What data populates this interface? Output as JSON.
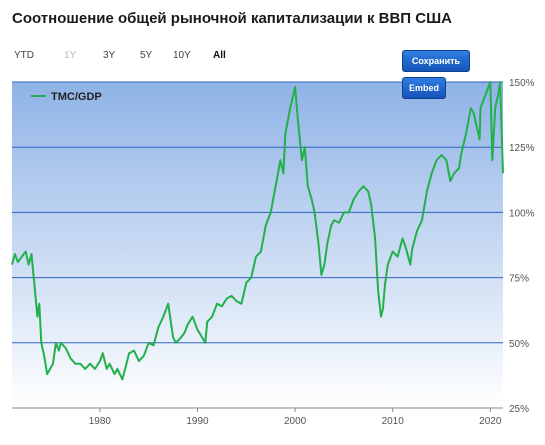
{
  "page": {
    "title": "Соотношение общей рыночной капитализации к ВВП США"
  },
  "ranges": [
    {
      "label": "YTD",
      "state": "normal"
    },
    {
      "label": "1Y",
      "state": "disabled"
    },
    {
      "label": "3Y",
      "state": "normal"
    },
    {
      "label": "5Y",
      "state": "normal"
    },
    {
      "label": "10Y",
      "state": "normal"
    },
    {
      "label": "All",
      "state": "active"
    }
  ],
  "buttons": {
    "save": "Сохранить",
    "embed": "Embed"
  },
  "colors": {
    "line": "#22b04a",
    "grid": "#2f62c4",
    "bg_top": "#8fb3e6",
    "bg_bottom": "#ffffff",
    "axis_text": "#555555"
  },
  "chart_data": {
    "type": "line",
    "title": "",
    "xlabel": "",
    "ylabel": "",
    "xlim": [
      1971,
      2021.3
    ],
    "ylim": [
      25,
      150
    ],
    "xticks": [
      1980,
      1990,
      2000,
      2010,
      2020
    ],
    "yticks": [
      25,
      50,
      75,
      100,
      125,
      150
    ],
    "ytick_labels": [
      "25%",
      "50%",
      "75%",
      "100%",
      "125%",
      "150%"
    ],
    "legend": {
      "position": "top-left"
    },
    "grid": "horizontal",
    "series": [
      {
        "name": "TMC/GDP",
        "x": [
          1971,
          1971.3,
          1971.6,
          1972,
          1972.4,
          1972.7,
          1973,
          1973.3,
          1973.6,
          1973.8,
          1974,
          1974.3,
          1974.6,
          1974.9,
          1975.2,
          1975.5,
          1975.8,
          1976,
          1976.5,
          1977,
          1977.5,
          1978,
          1978.5,
          1979,
          1979.5,
          1980,
          1980.3,
          1980.7,
          1981,
          1981.5,
          1981.8,
          1982.3,
          1982.6,
          1983,
          1983.5,
          1984,
          1984.5,
          1985,
          1985.5,
          1986,
          1986.5,
          1987,
          1987.5,
          1987.8,
          1988.3,
          1988.7,
          1989,
          1989.5,
          1990,
          1990.5,
          1990.8,
          1991,
          1991.5,
          1992,
          1992.5,
          1993,
          1993.5,
          1994,
          1994.5,
          1995,
          1995.5,
          1996,
          1996.5,
          1997,
          1997.5,
          1998,
          1998.5,
          1998.8,
          1999,
          1999.5,
          2000,
          2000.3,
          2000.7,
          2001,
          2001.3,
          2001.7,
          2002,
          2002.4,
          2002.7,
          2003,
          2003.3,
          2003.7,
          2004,
          2004.5,
          2005,
          2005.5,
          2006,
          2006.5,
          2007,
          2007.5,
          2007.8,
          2008.2,
          2008.5,
          2008.8,
          2009,
          2009.2,
          2009.5,
          2010,
          2010.5,
          2011,
          2011.3,
          2011.8,
          2012,
          2012.5,
          2013,
          2013.5,
          2014,
          2014.5,
          2015,
          2015.5,
          2015.9,
          2016.3,
          2016.8,
          2017,
          2017.5,
          2018,
          2018.3,
          2018.9,
          2019,
          2019.5,
          2020,
          2020.2,
          2020.5,
          2020.8,
          2021,
          2021.3
        ],
        "y": [
          80,
          84,
          81,
          83,
          85,
          80,
          84,
          72,
          60,
          65,
          50,
          45,
          38,
          40,
          42,
          50,
          47,
          50,
          48,
          44,
          42,
          42,
          40,
          42,
          40,
          43,
          46,
          40,
          42,
          38,
          40,
          36,
          40,
          46,
          47,
          43,
          45,
          50,
          49,
          56,
          60,
          65,
          52,
          50,
          52,
          54,
          57,
          60,
          55,
          52,
          50,
          58,
          60,
          65,
          64,
          67,
          68,
          66,
          65,
          73,
          75,
          83,
          85,
          95,
          100,
          110,
          120,
          115,
          130,
          140,
          148,
          135,
          120,
          125,
          110,
          105,
          100,
          88,
          76,
          80,
          88,
          95,
          97,
          96,
          100,
          100,
          105,
          108,
          110,
          108,
          103,
          90,
          70,
          60,
          63,
          72,
          80,
          85,
          83,
          90,
          87,
          80,
          86,
          93,
          97,
          108,
          115,
          120,
          122,
          120,
          112,
          115,
          117,
          122,
          130,
          140,
          138,
          128,
          140,
          145,
          150,
          120,
          140,
          145,
          150,
          115
        ]
      }
    ]
  }
}
